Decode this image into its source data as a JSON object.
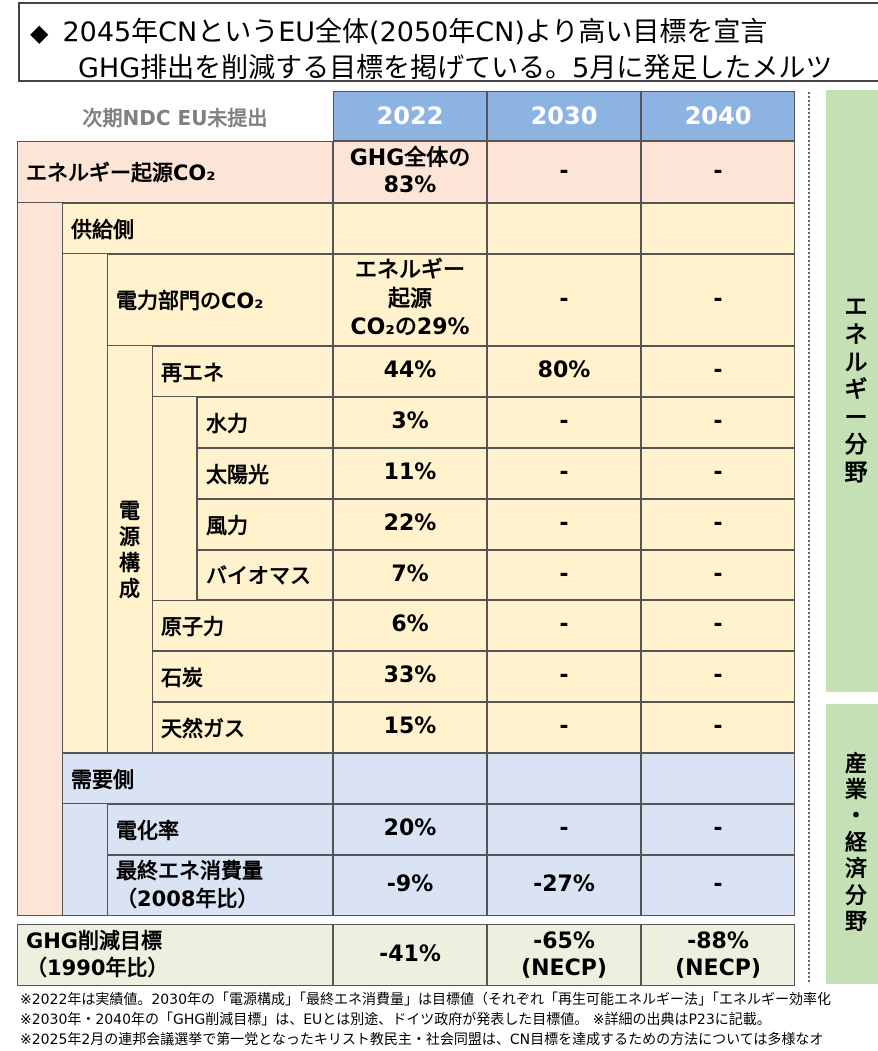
{
  "header": {
    "bullet": "◆",
    "line1": "2045年CNというEU全体(2050年CN)より高い目標を宣言",
    "line2": "GHG排出を削減する目標を掲げている。5月に発足したメルツ"
  },
  "table": {
    "corner_note": "次期NDC EU未提出",
    "years": [
      "2022",
      "2030",
      "2040"
    ],
    "rows": [
      {
        "label": "エネルギー起源CO₂",
        "values": [
          "GHG全体の\n83%",
          "-",
          "-"
        ]
      },
      {
        "label": "供給側",
        "values": [
          "",
          "",
          ""
        ]
      },
      {
        "label": "電力部門のCO₂",
        "values": [
          "エネルギー\n起源\nCO₂の29%",
          "-",
          "-"
        ]
      },
      {
        "label": "再エネ",
        "values": [
          "44%",
          "80%",
          "-"
        ]
      },
      {
        "label": "水力",
        "values": [
          "3%",
          "-",
          "-"
        ]
      },
      {
        "label": "太陽光",
        "values": [
          "11%",
          "-",
          "-"
        ]
      },
      {
        "label": "風力",
        "values": [
          "22%",
          "-",
          "-"
        ]
      },
      {
        "label": "バイオマス",
        "values": [
          "7%",
          "-",
          "-"
        ]
      },
      {
        "label": "原子力",
        "values": [
          "6%",
          "-",
          "-"
        ]
      },
      {
        "label": "石炭",
        "values": [
          "33%",
          "-",
          "-"
        ]
      },
      {
        "label": "天然ガス",
        "values": [
          "15%",
          "-",
          "-"
        ]
      },
      {
        "label": "需要側",
        "values": [
          "",
          "",
          ""
        ]
      },
      {
        "label": "電化率",
        "values": [
          "20%",
          "-",
          "-"
        ]
      },
      {
        "label": "最終エネ消費量\n（2008年比）",
        "values": [
          "-9%",
          "-27%",
          "-"
        ]
      }
    ],
    "ghg": {
      "label": "GHG削減目標\n（1990年比）",
      "values": [
        "-41%",
        "-65%\n(NECP)",
        "-88%\n(NECP)"
      ]
    },
    "vertical_label": "電\n源\n構\n成"
  },
  "side": {
    "energy": "エ\nネ\nル\nギ\nー\n分\n野",
    "industry": "産\n業\n・\n経\n済\n分\n野"
  },
  "notes": [
    "※2022年は実績値。2030年の「電源構成」「最終エネ消費量」は目標値（それぞれ「再生可能エネルギー法」「エネルギー効率化",
    "※2030年・2040年の「GHG削減目標」は、EUとは別途、ドイツ政府が発表した目標値。 ※詳細の出典はP23に記載。",
    "※2025年2月の連邦会議選挙で第一党となったキリスト教民主・社会同盟は、CN目標を達成するための方法については多様なオ"
  ],
  "colors": {
    "peach": "#fce4d6",
    "yellow": "#fff2cc",
    "blue": "#dae3f3",
    "green_side": "#c5e0b4",
    "green_ghg": "#ebf1de",
    "year_header": "#8db3e2"
  }
}
